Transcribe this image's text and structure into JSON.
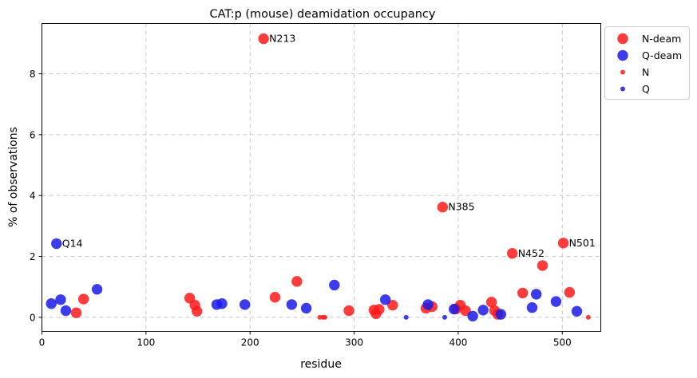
{
  "chart_data": {
    "type": "scatter",
    "title": "CAT:p (mouse) deamidation occupancy",
    "xlabel": "residue",
    "ylabel": "% of observations",
    "xlim": [
      0,
      537
    ],
    "ylim": [
      -0.46,
      9.65
    ],
    "xticks": [
      0,
      100,
      200,
      300,
      400,
      500
    ],
    "yticks": [
      0,
      2,
      4,
      6,
      8
    ],
    "grid": true,
    "legend_position": "outside-top-right",
    "colors": {
      "N": "#ff1a1a",
      "Q": "#1a1ae6",
      "frame": "#000000",
      "grid": "#c8c8c8"
    },
    "legend": [
      {
        "label": "N-deam",
        "marker": "large",
        "series": "N"
      },
      {
        "label": "Q-deam",
        "marker": "large",
        "series": "Q"
      },
      {
        "label": "N",
        "marker": "small",
        "series": "N"
      },
      {
        "label": "Q",
        "marker": "small",
        "series": "Q"
      }
    ],
    "series": [
      {
        "name": "N-deam",
        "kind": "N",
        "marker": "large",
        "points": [
          {
            "x": 33,
            "y": 0.15
          },
          {
            "x": 40,
            "y": 0.6
          },
          {
            "x": 142,
            "y": 0.63
          },
          {
            "x": 147,
            "y": 0.4
          },
          {
            "x": 149,
            "y": 0.2
          },
          {
            "x": 213,
            "y": 9.15,
            "label": "N213"
          },
          {
            "x": 224,
            "y": 0.66
          },
          {
            "x": 245,
            "y": 1.18
          },
          {
            "x": 295,
            "y": 0.22
          },
          {
            "x": 319,
            "y": 0.24
          },
          {
            "x": 321,
            "y": 0.12
          },
          {
            "x": 324,
            "y": 0.26
          },
          {
            "x": 337,
            "y": 0.4
          },
          {
            "x": 369,
            "y": 0.3
          },
          {
            "x": 375,
            "y": 0.35
          },
          {
            "x": 385,
            "y": 3.62,
            "label": "N385"
          },
          {
            "x": 398,
            "y": 0.28
          },
          {
            "x": 402,
            "y": 0.4
          },
          {
            "x": 407,
            "y": 0.22
          },
          {
            "x": 432,
            "y": 0.5
          },
          {
            "x": 435,
            "y": 0.22
          },
          {
            "x": 438,
            "y": 0.1
          },
          {
            "x": 452,
            "y": 2.1,
            "label": "N452"
          },
          {
            "x": 462,
            "y": 0.8
          },
          {
            "x": 481,
            "y": 1.7
          },
          {
            "x": 501,
            "y": 2.44,
            "label": "N501"
          },
          {
            "x": 507,
            "y": 0.82
          }
        ]
      },
      {
        "name": "Q-deam",
        "kind": "Q",
        "marker": "large",
        "points": [
          {
            "x": 9,
            "y": 0.45
          },
          {
            "x": 14,
            "y": 2.42,
            "label": "Q14"
          },
          {
            "x": 18,
            "y": 0.58
          },
          {
            "x": 23,
            "y": 0.22
          },
          {
            "x": 53,
            "y": 0.92
          },
          {
            "x": 168,
            "y": 0.42
          },
          {
            "x": 173,
            "y": 0.45
          },
          {
            "x": 195,
            "y": 0.42
          },
          {
            "x": 240,
            "y": 0.42
          },
          {
            "x": 254,
            "y": 0.3
          },
          {
            "x": 281,
            "y": 1.06
          },
          {
            "x": 330,
            "y": 0.58
          },
          {
            "x": 371,
            "y": 0.42
          },
          {
            "x": 396,
            "y": 0.27
          },
          {
            "x": 414,
            "y": 0.04
          },
          {
            "x": 424,
            "y": 0.24
          },
          {
            "x": 441,
            "y": 0.1
          },
          {
            "x": 471,
            "y": 0.32
          },
          {
            "x": 475,
            "y": 0.76
          },
          {
            "x": 494,
            "y": 0.52
          },
          {
            "x": 514,
            "y": 0.2
          }
        ]
      },
      {
        "name": "N",
        "kind": "N",
        "marker": "small",
        "points": [
          {
            "x": 267,
            "y": 0
          },
          {
            "x": 270,
            "y": 0
          },
          {
            "x": 272,
            "y": 0
          },
          {
            "x": 525,
            "y": 0
          }
        ]
      },
      {
        "name": "Q",
        "kind": "Q",
        "marker": "small",
        "points": [
          {
            "x": 350,
            "y": 0
          },
          {
            "x": 387,
            "y": 0
          }
        ]
      }
    ]
  }
}
